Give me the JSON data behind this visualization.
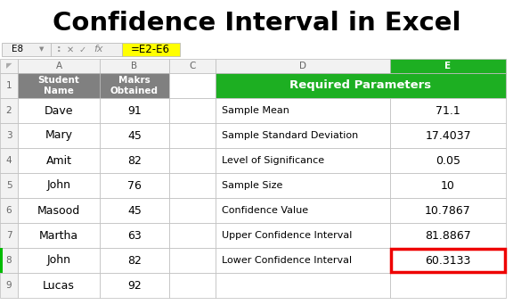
{
  "title": "Confidence Interval in Excel",
  "formula_bar_cell": "E8",
  "formula_bar_formula": "=E2-E6",
  "row_numbers": [
    "1",
    "2",
    "3",
    "4",
    "5",
    "6",
    "7",
    "8",
    "9"
  ],
  "left_table": {
    "header_a": "Student\nName",
    "header_b": "Makrs\nObtained",
    "rows": [
      [
        "Dave",
        "91"
      ],
      [
        "Mary",
        "45"
      ],
      [
        "Amit",
        "82"
      ],
      [
        "John",
        "76"
      ],
      [
        "Masood",
        "45"
      ],
      [
        "Martha",
        "63"
      ],
      [
        "John",
        "82"
      ],
      [
        "Lucas",
        "92"
      ]
    ]
  },
  "right_table": {
    "header": "Required Parameters",
    "header_bg": "#1DAF22",
    "header_text": "#FFFFFF",
    "rows": [
      [
        "Sample Mean",
        "71.1"
      ],
      [
        "Sample Standard Deviation",
        "17.4037"
      ],
      [
        "Level of Significance",
        "0.05"
      ],
      [
        "Sample Size",
        "10"
      ],
      [
        "Confidence Value",
        "10.7867"
      ],
      [
        "Upper Confidence Interval",
        "81.8867"
      ],
      [
        "Lower Confidence Interval",
        "60.3133"
      ]
    ]
  },
  "left_header_bg": "#808080",
  "left_header_text": "#FFFFFF",
  "grid_color": "#BBBBBB",
  "col_hdr_bg": "#F2F2F2",
  "col_hdr_text": "#666666",
  "row8_border_color": "#00BB00",
  "cell_E8_border": "#EE0000",
  "formula_bg": "#FFFF00",
  "title_color": "#000000",
  "bg_color": "#FFFFFF"
}
